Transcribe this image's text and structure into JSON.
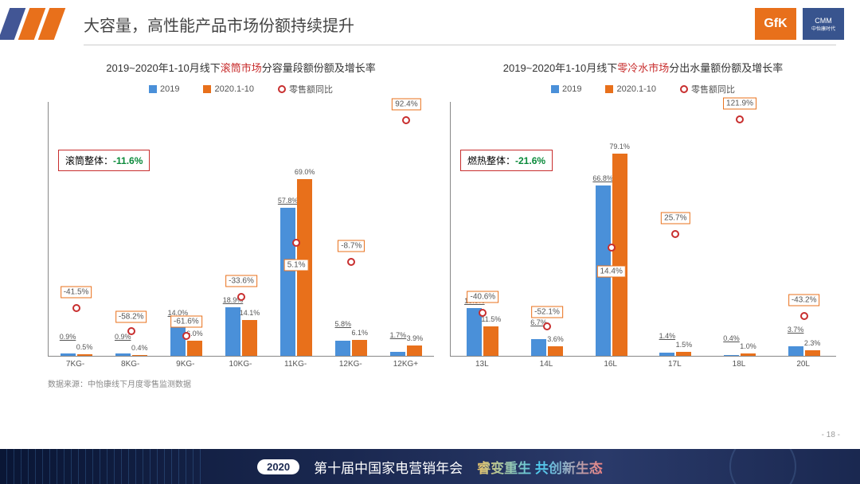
{
  "page_title": "大容量，高性能产品市场份额持续提升",
  "logos": {
    "gfk": "GfK",
    "cmm": "CMM",
    "cmm_sub": "中怡康时代"
  },
  "legend": {
    "s2019": "2019",
    "s2020": "2020.1-10",
    "yoy": "零售额同比"
  },
  "colors": {
    "s2019": "#4a90d9",
    "s2020": "#e8701b",
    "yoy_ring": "#c82e2e",
    "yoy_box": "#e8701b"
  },
  "source": "数据来源：中怡康线下月度零售监测数据",
  "page_num": "- 18 -",
  "footer": {
    "year": "2020",
    "title": "第十届中国家电营销年会",
    "slogan": "睿变重生  共创新生态"
  },
  "left_chart": {
    "title_pre": "2019~2020年1-10月线下",
    "title_hl": "滚筒市场",
    "title_post": "分容量段额份额及增长率",
    "callout_label": "滚筒整体：",
    "callout_value": "-11.6%",
    "categories": [
      "7KG-",
      "8KG-",
      "9KG-",
      "10KG-",
      "11KG-",
      "12KG-",
      "12KG+"
    ],
    "v2019": [
      0.9,
      0.9,
      14.0,
      18.9,
      57.8,
      5.8,
      1.7
    ],
    "v2020": [
      0.5,
      0.4,
      6.0,
      14.1,
      69.0,
      6.1,
      3.9
    ],
    "yoy": [
      -41.5,
      -58.2,
      -61.6,
      -33.6,
      5.1,
      -8.7,
      92.4
    ],
    "ymax": 90,
    "yoy_min": -70,
    "yoy_max": 100
  },
  "right_chart": {
    "title_pre": "2019~2020年1-10月线下",
    "title_hl": "零冷水市场",
    "title_post": "分出水量额份额及增长率",
    "callout_label": "燃热整体：",
    "callout_value": "-21.6%",
    "categories": [
      "13L",
      "14L",
      "16L",
      "17L",
      "18L",
      "20L"
    ],
    "v2019": [
      18.6,
      6.7,
      66.8,
      1.4,
      0.4,
      3.7
    ],
    "v2020": [
      11.5,
      3.6,
      79.1,
      1.5,
      1.0,
      2.3
    ],
    "yoy": [
      -40.6,
      -52.1,
      14.4,
      25.7,
      121.9,
      -43.2
    ],
    "ymax": 90,
    "yoy_min": -70,
    "yoy_max": 130
  }
}
